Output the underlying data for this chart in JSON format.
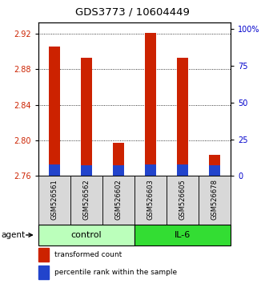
{
  "title": "GDS3773 / 10604449",
  "samples": [
    "GSM526561",
    "GSM526562",
    "GSM526602",
    "GSM526603",
    "GSM526605",
    "GSM526678"
  ],
  "red_tops": [
    2.905,
    2.893,
    2.797,
    2.921,
    2.893,
    2.784
  ],
  "blue_tops": [
    2.773,
    2.772,
    2.772,
    2.773,
    2.773,
    2.772
  ],
  "bar_base": 2.76,
  "ylim_left": [
    2.76,
    2.932
  ],
  "yticks_left": [
    2.76,
    2.8,
    2.84,
    2.88,
    2.92
  ],
  "yticks_right": [
    0,
    25,
    50,
    75,
    100
  ],
  "ylim_right": [
    0,
    104
  ],
  "groups": [
    {
      "label": "control",
      "indices": [
        0,
        1,
        2
      ],
      "color": "#bbffbb"
    },
    {
      "label": "IL-6",
      "indices": [
        3,
        4,
        5
      ],
      "color": "#33dd33"
    }
  ],
  "bar_width": 0.35,
  "red_color": "#cc2200",
  "blue_color": "#2244cc",
  "agent_label": "agent",
  "legend_red": "transformed count",
  "legend_blue": "percentile rank within the sample",
  "left_label_color": "#cc2200",
  "right_label_color": "#0000cc",
  "title_fontsize": 9.5,
  "tick_fontsize": 7,
  "sample_fontsize": 6,
  "group_fontsize": 8,
  "legend_fontsize": 6.5
}
